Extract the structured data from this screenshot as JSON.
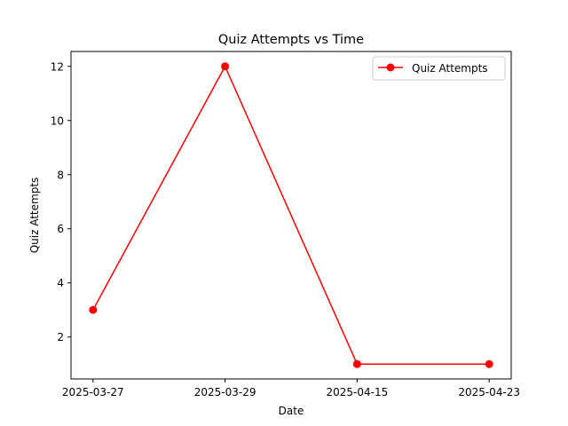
{
  "chart_data": {
    "type": "line",
    "title": "Quiz Attempts vs Time",
    "xlabel": "Date",
    "ylabel": "Quiz Attempts",
    "categories": [
      "2025-03-27",
      "2025-03-29",
      "2025-04-15",
      "2025-04-23"
    ],
    "series": [
      {
        "name": "Quiz Attempts",
        "values": [
          3,
          12,
          1,
          1
        ],
        "color": "#ff0000",
        "marker": "circle"
      }
    ],
    "ylim": [
      0.45,
      12.55
    ],
    "yticks": [
      2,
      4,
      6,
      8,
      10,
      12
    ],
    "grid": false,
    "legend": "top-right"
  }
}
